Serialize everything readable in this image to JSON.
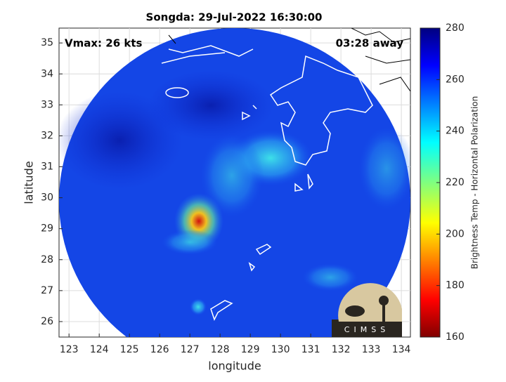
{
  "chart_data": {
    "type": "satellite-map",
    "title": "Songda: 29-Jul-2022 16:30:00",
    "annotations": [
      "Vmax: 26 kts",
      "03:28 away"
    ],
    "xlabel": "longitude",
    "ylabel": "latitude",
    "xlim": [
      122.67,
      134.3
    ],
    "xticks": [
      123,
      124,
      125,
      126,
      127,
      128,
      129,
      130,
      131,
      132,
      133,
      134
    ],
    "ylim": [
      25.5,
      35.48
    ],
    "yticks": [
      26,
      27,
      28,
      29,
      30,
      31,
      32,
      33,
      34,
      35
    ],
    "grid": true,
    "colormap": "jet",
    "colorbar": {
      "label": "Brightness Temp - Horizontal Polarization",
      "lim": [
        160,
        280
      ],
      "ticks": [
        160,
        180,
        200,
        220,
        240,
        260,
        280
      ]
    },
    "logo": "CIMSS"
  }
}
